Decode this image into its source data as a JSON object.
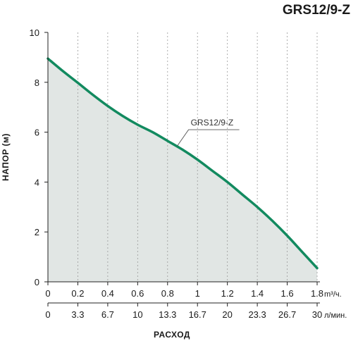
{
  "chart_data": {
    "type": "area",
    "title": "GRS12/9-Z",
    "ylabel": "НАПОР (м)",
    "xlabel": "РАСХОД",
    "ylim": [
      0,
      10
    ],
    "yticks": [
      0,
      2,
      4,
      6,
      8,
      10
    ],
    "xlim": [
      0,
      1.8
    ],
    "xticks": [
      "0",
      "0.2",
      "0.4",
      "0.6",
      "0.8",
      "1",
      "1.2",
      "1.4",
      "1.6",
      "1.8"
    ],
    "x_unit": "m³/ч.",
    "x2ticks": [
      "0",
      "3.3",
      "6.7",
      "10",
      "13.3",
      "16.7",
      "20",
      "23.3",
      "26.7",
      "30"
    ],
    "x2_unit": "л/мин.",
    "grid": "vertical dashed",
    "annotation": "GRS12/9-Z",
    "series": [
      {
        "name": "GRS12/9-Z",
        "color": "#128a5f",
        "fill": "#e1e6e4",
        "x": [
          0,
          0.1,
          0.2,
          0.3,
          0.4,
          0.5,
          0.6,
          0.7,
          0.8,
          0.9,
          1.0,
          1.1,
          1.2,
          1.3,
          1.4,
          1.5,
          1.6,
          1.7,
          1.8
        ],
        "y": [
          8.95,
          8.45,
          7.98,
          7.5,
          7.05,
          6.65,
          6.3,
          6.0,
          5.65,
          5.3,
          4.9,
          4.45,
          4.0,
          3.5,
          3.0,
          2.45,
          1.85,
          1.2,
          0.55
        ]
      }
    ]
  },
  "colors": {
    "title": "#0a8a5a",
    "curve": "#128a5f",
    "area": "#e1e6e4",
    "axis": "#222222",
    "grid": "#999999"
  }
}
